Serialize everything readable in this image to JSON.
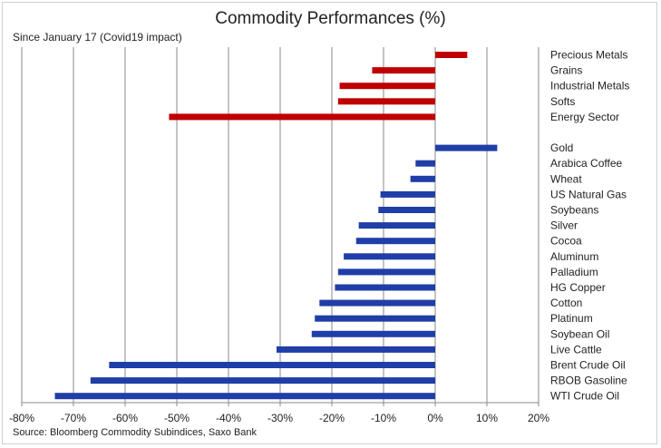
{
  "chart_data": {
    "type": "bar",
    "orientation": "horizontal",
    "title": "Commodity Performances (%)",
    "subtitle": "Since January 17 (Covid19 impact)",
    "source": "Source: Bloomberg Commodity Subindices, Saxo Bank",
    "xlim": [
      -80,
      20
    ],
    "xticks": [
      -80,
      -70,
      -60,
      -50,
      -40,
      -30,
      -20,
      -10,
      0,
      10,
      20
    ],
    "xtick_labels": [
      "-80%",
      "-70%",
      "-60%",
      "-50%",
      "-40%",
      "-30%",
      "-20%",
      "-10%",
      "0%",
      "10%",
      "20%"
    ],
    "grid": "vertical",
    "series": [
      {
        "group": "sectors",
        "color": "#c00000",
        "categories": [
          "Precious Metals",
          "Grains",
          "Industrial Metals",
          "Softs",
          "Energy Sector"
        ],
        "values": [
          6.2,
          -12.2,
          -18.5,
          -18.8,
          -51.5
        ]
      },
      {
        "group": "commodities",
        "color": "#1f3ea8",
        "categories": [
          "Gold",
          "Arabica Coffee",
          "Wheat",
          "US Natural Gas",
          "Soybeans",
          "Silver",
          "Cocoa",
          "Aluminum",
          "Palladium",
          "HG Copper",
          "Cotton",
          "Platinum",
          "Soybean Oil",
          "Live Cattle",
          "Brent Crude Oil",
          "RBOB Gasoline",
          "WTI Crude Oil"
        ],
        "values": [
          12.0,
          -3.8,
          -4.8,
          -10.6,
          -11.0,
          -14.8,
          -15.3,
          -17.7,
          -18.8,
          -19.4,
          -22.4,
          -23.3,
          -23.9,
          -30.7,
          -63.1,
          -66.7,
          -73.6
        ]
      }
    ]
  }
}
